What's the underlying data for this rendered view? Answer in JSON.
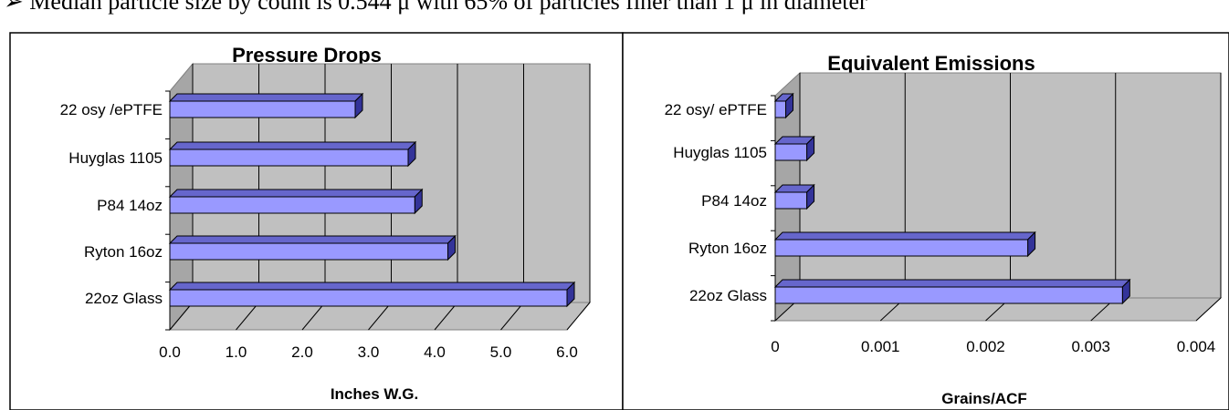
{
  "caption": "➢   Median particle size by count is 0.544 μ with 65% of particles finer than 1 μ in diameter",
  "chart_data": [
    {
      "type": "bar",
      "orientation": "horizontal",
      "style": "3d",
      "title": "Pressure Drops",
      "xlabel": "Inches W.G.",
      "ylabel": "",
      "categories": [
        "22 osy /ePTFE",
        "Huyglas 1105",
        "P84 14oz",
        "Ryton 16oz",
        "22oz Glass"
      ],
      "values": [
        2.8,
        3.6,
        3.7,
        4.2,
        6.0
      ],
      "xlim": [
        0,
        6
      ],
      "ticks": [
        "0.0",
        "1.0",
        "2.0",
        "3.0",
        "4.0",
        "5.0",
        "6.0"
      ],
      "grid": true,
      "colors": {
        "bar_front": "#9999ff",
        "bar_top": "#6666cc",
        "bar_side": "#333399",
        "wall": "#c0c0c0"
      }
    },
    {
      "type": "bar",
      "orientation": "horizontal",
      "style": "3d",
      "title": "Equivalent Emissions",
      "xlabel": "Grains/ACF",
      "ylabel": "",
      "categories": [
        "22 osy/ ePTFE",
        "Huyglas 1105",
        "P84 14oz",
        "Ryton 16oz",
        "22oz Glass"
      ],
      "values": [
        0.0001,
        0.0003,
        0.0003,
        0.0024,
        0.0033
      ],
      "xlim": [
        0,
        0.004
      ],
      "ticks": [
        "0",
        "0.001",
        "0.002",
        "0.003",
        "0.004"
      ],
      "grid": true,
      "colors": {
        "bar_front": "#9999ff",
        "bar_top": "#6666cc",
        "bar_side": "#333399",
        "wall": "#c0c0c0"
      }
    }
  ]
}
